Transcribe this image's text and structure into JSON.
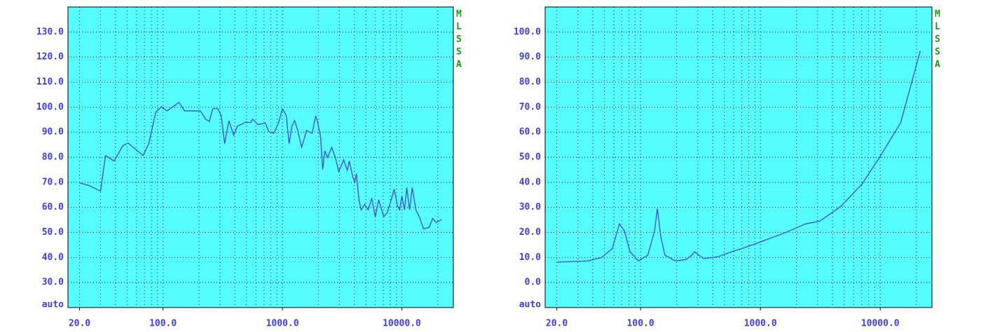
{
  "chart_data": [
    {
      "type": "line",
      "annotation": "MLSSA",
      "xscale": "log",
      "grid": true,
      "background": "#55ffff",
      "xlim": [
        16,
        27000
      ],
      "ylim": [
        20,
        140
      ],
      "xticks": [
        {
          "value": 20,
          "label": "20.0"
        },
        {
          "value": 100,
          "label": "100.0"
        },
        {
          "value": 1000,
          "label": "1000.0"
        },
        {
          "value": 10000,
          "label": "10000.0"
        }
      ],
      "xgrid": [
        20,
        30,
        40,
        50,
        60,
        70,
        80,
        90,
        100,
        200,
        300,
        400,
        500,
        600,
        700,
        800,
        900,
        1000,
        2000,
        3000,
        4000,
        5000,
        6000,
        7000,
        8000,
        9000,
        10000,
        20000
      ],
      "yticks": [
        {
          "value": 20,
          "label": "auto"
        },
        {
          "value": 30,
          "label": "30.0"
        },
        {
          "value": 40,
          "label": "40.0"
        },
        {
          "value": 50,
          "label": "50.0"
        },
        {
          "value": 60,
          "label": "60.0"
        },
        {
          "value": 70,
          "label": "70.0"
        },
        {
          "value": 80,
          "label": "80.0"
        },
        {
          "value": 90,
          "label": "90.0"
        },
        {
          "value": 100,
          "label": "100.0"
        },
        {
          "value": 110,
          "label": "110.0"
        },
        {
          "value": 120,
          "label": "120.0"
        },
        {
          "value": 130,
          "label": "130.0"
        }
      ],
      "series": [
        {
          "color": "#4646e6",
          "x": [
            20,
            24,
            30,
            33,
            39,
            46,
            51,
            58,
            68,
            76,
            87,
            97,
            108,
            136,
            152,
            205,
            228,
            244,
            261,
            287,
            307,
            328,
            356,
            391,
            419,
            448,
            492,
            541,
            564,
            628,
            718,
            769,
            845,
            929,
            1000,
            1077,
            1138,
            1199,
            1268,
            1337,
            1449,
            1592,
            1775,
            1900,
            1977,
            2089,
            2173,
            2265,
            2388,
            2588,
            2773,
            2965,
            3258,
            3491,
            3631,
            3882,
            4046,
            4159,
            4385,
            4571,
            4887,
            5224,
            5598,
            5984,
            6397,
            7046,
            7534,
            8166,
            8610,
            9226,
            9594,
            10000,
            10544,
            10990,
            11610,
            12240,
            13100,
            14030,
            15210,
            16940,
            18110,
            19370,
            21580
          ],
          "values": [
            69.8,
            68.7,
            66.5,
            80.7,
            78.5,
            84.6,
            85.7,
            83.5,
            80.7,
            85.4,
            98.0,
            100.2,
            98.5,
            101.9,
            98.5,
            98.5,
            95.2,
            94.3,
            99.4,
            99.4,
            96.6,
            85.4,
            94.6,
            88.8,
            92.4,
            93.0,
            94.1,
            93.8,
            95.2,
            93.0,
            93.8,
            90.2,
            89.6,
            93.8,
            99.4,
            96.6,
            85.4,
            92.4,
            94.6,
            91.0,
            84.0,
            90.7,
            89.6,
            96.6,
            93.8,
            87.9,
            75.1,
            82.6,
            79.9,
            84.0,
            79.9,
            74.3,
            79.0,
            74.8,
            78.5,
            72.1,
            70.1,
            73.5,
            62.6,
            59.0,
            61.2,
            59.0,
            63.7,
            56.2,
            63.1,
            56.2,
            57.9,
            63.1,
            67.3,
            60.4,
            59.0,
            64.5,
            59.0,
            67.9,
            59.0,
            67.9,
            59.0,
            56.2,
            51.4,
            52.0,
            55.6,
            54.0,
            55.1
          ]
        }
      ]
    },
    {
      "type": "line",
      "annotation": "MLSSA",
      "xscale": "log",
      "grid": true,
      "background": "#55ffff",
      "xlim": [
        16,
        27000
      ],
      "ylim": [
        -10,
        110
      ],
      "xticks": [
        {
          "value": 20,
          "label": "20.0"
        },
        {
          "value": 100,
          "label": "100.0"
        },
        {
          "value": 1000,
          "label": "1000.0"
        },
        {
          "value": 10000,
          "label": "10000.0"
        }
      ],
      "xgrid": [
        20,
        30,
        40,
        50,
        60,
        70,
        80,
        90,
        100,
        200,
        300,
        400,
        500,
        600,
        700,
        800,
        900,
        1000,
        2000,
        3000,
        4000,
        5000,
        6000,
        7000,
        8000,
        9000,
        10000,
        20000
      ],
      "yticks": [
        {
          "value": -10,
          "label": "auto"
        },
        {
          "value": 0,
          "label": "0.0"
        },
        {
          "value": 10,
          "label": "10.0"
        },
        {
          "value": 20,
          "label": "20.0"
        },
        {
          "value": 30,
          "label": "30.0"
        },
        {
          "value": 40,
          "label": "40.0"
        },
        {
          "value": 50,
          "label": "50.0"
        },
        {
          "value": 60,
          "label": "60.0"
        },
        {
          "value": 70,
          "label": "70.0"
        },
        {
          "value": 80,
          "label": "80.0"
        },
        {
          "value": 90,
          "label": "90.0"
        },
        {
          "value": 100,
          "label": "100.0"
        }
      ],
      "series": [
        {
          "color": "#4646e6",
          "x": [
            20,
            36.3,
            47.6,
            58.2,
            66.7,
            73.3,
            81.7,
            96,
            115,
            131,
            138,
            148,
            160,
            196,
            240,
            268,
            283,
            307,
            337,
            442,
            578,
            708,
            1000,
            1592,
            2388,
            3133,
            4699,
            7046,
            10000,
            14790,
            21580
          ],
          "values": [
            8.1,
            8.6,
            10.0,
            13.6,
            23.4,
            20.6,
            12.3,
            8.6,
            10.9,
            20.6,
            29.5,
            17.8,
            10.9,
            8.6,
            9.2,
            10.9,
            12.3,
            10.9,
            9.5,
            10.3,
            12.3,
            13.6,
            16.2,
            19.8,
            23.4,
            24.5,
            30.4,
            39.3,
            50.4,
            63.8,
            92.5
          ]
        }
      ]
    }
  ]
}
